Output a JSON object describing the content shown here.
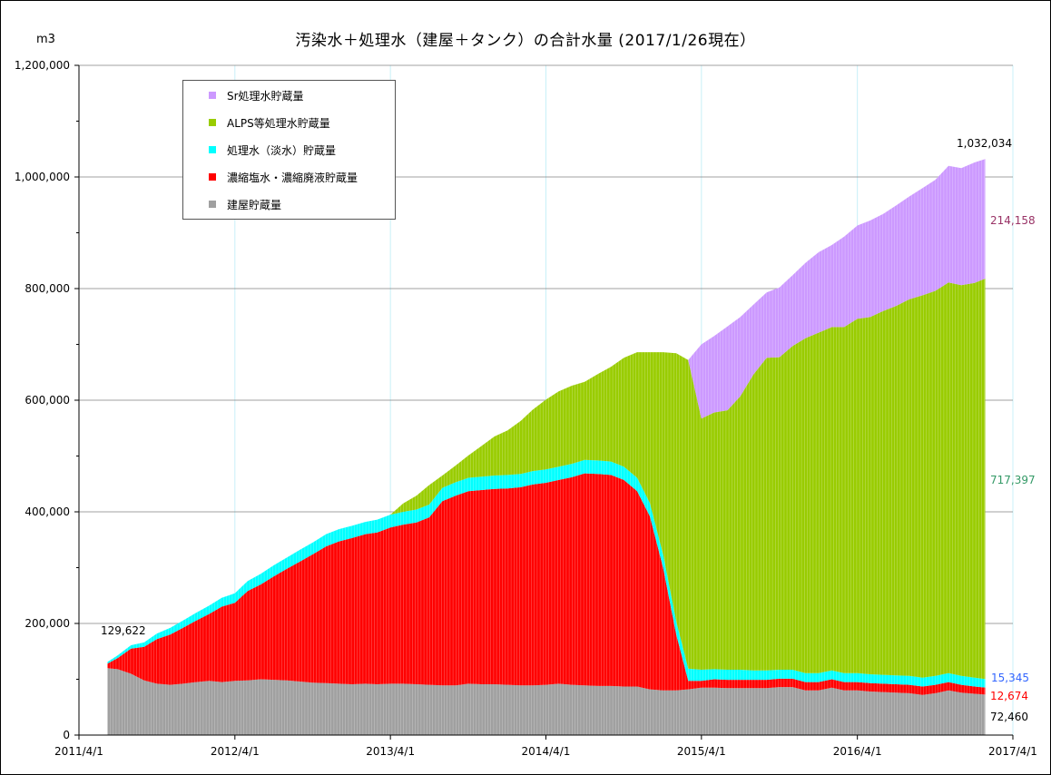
{
  "chart_data": {
    "type": "area",
    "stacked": true,
    "title": "汚染水＋処理水（建屋＋タンク）の合計水量 (2017/1/26現在）",
    "unit_label": "m3",
    "xlabel": "",
    "ylabel": "",
    "x_ticks": [
      "2011/4/1",
      "2012/4/1",
      "2013/4/1",
      "2014/4/1",
      "2015/4/1",
      "2016/4/1",
      "2017/4/1"
    ],
    "y_ticks": [
      "0",
      "200,000",
      "400,000",
      "600,000",
      "800,000",
      "1,000,000",
      "1,200,000"
    ],
    "ylim": [
      0,
      1200000
    ],
    "xlim": [
      "2011/4/1",
      "2017/4/1"
    ],
    "grid": true,
    "legend_position": "top-left",
    "x": [
      "2011/6/7",
      "2011/7/1",
      "2011/8/1",
      "2011/9/1",
      "2011/10/1",
      "2011/11/1",
      "2011/12/1",
      "2012/1/1",
      "2012/2/1",
      "2012/3/1",
      "2012/4/1",
      "2012/5/1",
      "2012/6/1",
      "2012/7/1",
      "2012/8/1",
      "2012/9/1",
      "2012/10/1",
      "2012/11/1",
      "2012/12/1",
      "2013/1/1",
      "2013/2/1",
      "2013/3/1",
      "2013/4/1",
      "2013/5/1",
      "2013/6/1",
      "2013/7/1",
      "2013/8/1",
      "2013/9/1",
      "2013/10/1",
      "2013/11/1",
      "2013/12/1",
      "2014/1/1",
      "2014/2/1",
      "2014/3/1",
      "2014/4/1",
      "2014/5/1",
      "2014/6/1",
      "2014/7/1",
      "2014/8/1",
      "2014/9/1",
      "2014/10/1",
      "2014/11/1",
      "2014/12/1",
      "2015/1/1",
      "2015/2/1",
      "2015/3/1",
      "2015/4/1",
      "2015/5/1",
      "2015/6/1",
      "2015/7/1",
      "2015/8/1",
      "2015/9/1",
      "2015/10/1",
      "2015/11/1",
      "2015/12/1",
      "2016/1/1",
      "2016/2/1",
      "2016/3/1",
      "2016/4/1",
      "2016/5/1",
      "2016/6/1",
      "2016/7/1",
      "2016/8/1",
      "2016/9/1",
      "2016/10/1",
      "2016/11/1",
      "2016/12/1",
      "2017/1/1",
      "2017/1/26"
    ],
    "series": [
      {
        "name": "建屋貯蔵量",
        "color": "#a0a0a0",
        "values": [
          120000,
          118000,
          110000,
          98000,
          92000,
          90000,
          92000,
          95000,
          97000,
          95000,
          97000,
          98000,
          100000,
          99000,
          98000,
          96000,
          94000,
          93000,
          92000,
          91000,
          92000,
          91000,
          92000,
          92000,
          91000,
          90000,
          89000,
          89000,
          92000,
          91000,
          91000,
          90000,
          89000,
          89000,
          90000,
          92000,
          90000,
          89000,
          88000,
          88000,
          87000,
          87000,
          82000,
          80000,
          80000,
          82000,
          85000,
          85000,
          84000,
          84000,
          84000,
          84000,
          86000,
          86000,
          80000,
          80000,
          85000,
          80000,
          80000,
          78000,
          77000,
          76000,
          75000,
          72000,
          75000,
          80000,
          76000,
          74000,
          72460
        ]
      },
      {
        "name": "濃縮塩水・濃縮廃液貯蔵量",
        "color": "#ff0000",
        "values": [
          8000,
          20000,
          45000,
          60000,
          80000,
          90000,
          100000,
          110000,
          120000,
          135000,
          140000,
          160000,
          170000,
          185000,
          200000,
          215000,
          230000,
          245000,
          255000,
          262000,
          268000,
          272000,
          280000,
          285000,
          290000,
          300000,
          330000,
          340000,
          345000,
          348000,
          350000,
          352000,
          355000,
          360000,
          362000,
          365000,
          372000,
          380000,
          380000,
          378000,
          370000,
          350000,
          310000,
          220000,
          100000,
          15000,
          12000,
          15000,
          15000,
          15000,
          15000,
          15000,
          15000,
          15000,
          15000,
          15000,
          15000,
          15000,
          15000,
          15000,
          15000,
          15000,
          15000,
          15000,
          15000,
          15000,
          14000,
          13000,
          12674
        ]
      },
      {
        "name": "処理水（淡水）貯蔵量",
        "color": "#00ffff",
        "values": [
          3000,
          5000,
          6000,
          8000,
          10000,
          12000,
          13000,
          14000,
          15000,
          16000,
          17000,
          18000,
          19000,
          20000,
          20000,
          21000,
          21000,
          22000,
          22000,
          22000,
          22000,
          23000,
          23000,
          23000,
          23000,
          23000,
          24000,
          24000,
          24000,
          24000,
          24000,
          24000,
          24000,
          24000,
          24000,
          24000,
          24000,
          24000,
          24000,
          24000,
          24000,
          24000,
          24000,
          24000,
          24000,
          22000,
          20000,
          18000,
          18000,
          18000,
          17000,
          17000,
          16000,
          16000,
          16000,
          16000,
          16000,
          16000,
          16000,
          16000,
          16000,
          16000,
          16000,
          16000,
          16000,
          16000,
          16000,
          16000,
          15345
        ]
      },
      {
        "name": "ALPS等処理水貯蔵量",
        "color": "#99cc00",
        "values": [
          0,
          0,
          0,
          0,
          0,
          0,
          0,
          0,
          0,
          0,
          0,
          0,
          0,
          0,
          0,
          0,
          0,
          0,
          0,
          0,
          0,
          0,
          0,
          15000,
          25000,
          35000,
          22000,
          30000,
          40000,
          55000,
          70000,
          80000,
          95000,
          110000,
          125000,
          135000,
          140000,
          140000,
          155000,
          170000,
          195000,
          225000,
          270000,
          362000,
          480000,
          553000,
          450000,
          460000,
          465000,
          490000,
          530000,
          560000,
          560000,
          580000,
          600000,
          610000,
          615000,
          620000,
          635000,
          640000,
          652000,
          662000,
          675000,
          685000,
          690000,
          700000,
          700000,
          707000,
          717397
        ]
      },
      {
        "name": "Sr処理水貯蔵量",
        "color": "#cc99ff",
        "values": [
          0,
          0,
          0,
          0,
          0,
          0,
          0,
          0,
          0,
          0,
          0,
          0,
          0,
          0,
          0,
          0,
          0,
          0,
          0,
          0,
          0,
          0,
          0,
          0,
          0,
          0,
          0,
          0,
          0,
          0,
          0,
          0,
          0,
          0,
          0,
          0,
          0,
          0,
          0,
          0,
          0,
          0,
          0,
          0,
          0,
          0,
          133000,
          137000,
          150000,
          142000,
          125000,
          117000,
          125000,
          127000,
          135000,
          144000,
          147000,
          162000,
          167000,
          173000,
          174000,
          180000,
          184000,
          192000,
          199000,
          209000,
          210000,
          216000,
          214158
        ]
      }
    ],
    "annotations": [
      {
        "text": "129,622",
        "color": "#000000"
      },
      {
        "text": "1,032,034",
        "color": "#000000"
      },
      {
        "text": "214,158",
        "color": "#993366"
      },
      {
        "text": "717,397",
        "color": "#339966"
      },
      {
        "text": "15,345",
        "color": "#3366ff"
      },
      {
        "text": "12,674",
        "color": "#ff0000"
      },
      {
        "text": "72,460",
        "color": "#000000"
      }
    ]
  }
}
